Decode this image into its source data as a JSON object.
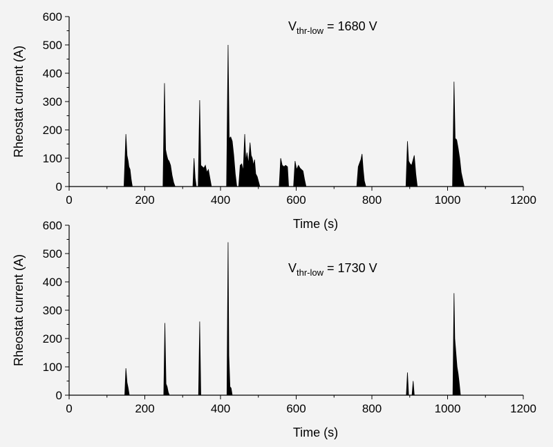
{
  "chart_data": [
    {
      "type": "area",
      "xlabel": "Time (s)",
      "ylabel": "Rheostat current (A)",
      "xlim": [
        0,
        1200
      ],
      "ylim": [
        0,
        600
      ],
      "xticks": [
        0,
        200,
        400,
        600,
        800,
        1000,
        1200
      ],
      "yticks": [
        0,
        100,
        200,
        300,
        400,
        500,
        600
      ],
      "annotation": {
        "main": "V",
        "sub": "thr-low",
        "rest": " = 1680 V"
      },
      "series": [
        {
          "color": "#000000",
          "points": [
            [
              145,
              0
            ],
            [
              150,
              185
            ],
            [
              153,
              110
            ],
            [
              156,
              90
            ],
            [
              158,
              70
            ],
            [
              161,
              60
            ],
            [
              164,
              25
            ],
            [
              167,
              0
            ],
            [
              248,
              0
            ],
            [
              252,
              365
            ],
            [
              255,
              130
            ],
            [
              258,
              110
            ],
            [
              261,
              95
            ],
            [
              264,
              90
            ],
            [
              268,
              75
            ],
            [
              272,
              40
            ],
            [
              276,
              15
            ],
            [
              280,
              0
            ],
            [
              327,
              0
            ],
            [
              330,
              100
            ],
            [
              333,
              30
            ],
            [
              336,
              0
            ],
            [
              341,
              0
            ],
            [
              345,
              305
            ],
            [
              348,
              75
            ],
            [
              352,
              70
            ],
            [
              356,
              65
            ],
            [
              360,
              75
            ],
            [
              364,
              50
            ],
            [
              368,
              60
            ],
            [
              372,
              30
            ],
            [
              376,
              0
            ],
            [
              416,
              0
            ],
            [
              420,
              500
            ],
            [
              423,
              170
            ],
            [
              427,
              175
            ],
            [
              431,
              160
            ],
            [
              435,
              110
            ],
            [
              439,
              45
            ],
            [
              443,
              0
            ],
            [
              448,
              0
            ],
            [
              452,
              75
            ],
            [
              456,
              80
            ],
            [
              460,
              55
            ],
            [
              464,
              185
            ],
            [
              467,
              90
            ],
            [
              470,
              120
            ],
            [
              474,
              80
            ],
            [
              478,
              155
            ],
            [
              481,
              110
            ],
            [
              484,
              100
            ],
            [
              487,
              75
            ],
            [
              490,
              95
            ],
            [
              493,
              45
            ],
            [
              497,
              35
            ],
            [
              500,
              20
            ],
            [
              504,
              0
            ],
            [
              555,
              0
            ],
            [
              559,
              100
            ],
            [
              563,
              75
            ],
            [
              568,
              70
            ],
            [
              572,
              75
            ],
            [
              577,
              70
            ],
            [
              580,
              0
            ],
            [
              593,
              0
            ],
            [
              597,
              90
            ],
            [
              601,
              60
            ],
            [
              606,
              75
            ],
            [
              610,
              65
            ],
            [
              614,
              60
            ],
            [
              618,
              55
            ],
            [
              622,
              25
            ],
            [
              626,
              0
            ],
            [
              760,
              0
            ],
            [
              764,
              70
            ],
            [
              768,
              85
            ],
            [
              771,
              95
            ],
            [
              774,
              115
            ],
            [
              777,
              60
            ],
            [
              780,
              20
            ],
            [
              784,
              0
            ],
            [
              890,
              0
            ],
            [
              894,
              160
            ],
            [
              897,
              90
            ],
            [
              901,
              80
            ],
            [
              905,
              75
            ],
            [
              909,
              95
            ],
            [
              912,
              110
            ],
            [
              916,
              45
            ],
            [
              920,
              0
            ],
            [
              1013,
              0
            ],
            [
              1017,
              370
            ],
            [
              1020,
              170
            ],
            [
              1024,
              165
            ],
            [
              1028,
              135
            ],
            [
              1032,
              100
            ],
            [
              1036,
              50
            ],
            [
              1040,
              25
            ],
            [
              1044,
              0
            ]
          ]
        }
      ]
    },
    {
      "type": "area",
      "xlabel": "Time (s)",
      "ylabel": "Rheostat current (A)",
      "xlim": [
        0,
        1200
      ],
      "ylim": [
        0,
        600
      ],
      "xticks": [
        0,
        200,
        400,
        600,
        800,
        1000,
        1200
      ],
      "yticks": [
        0,
        100,
        200,
        300,
        400,
        500,
        600
      ],
      "annotation": {
        "main": "V",
        "sub": "thr-low",
        "rest": " = 1730 V"
      },
      "series": [
        {
          "color": "#000000",
          "points": [
            [
              147,
              0
            ],
            [
              150,
              95
            ],
            [
              153,
              45
            ],
            [
              156,
              25
            ],
            [
              159,
              0
            ],
            [
              250,
              0
            ],
            [
              253,
              255
            ],
            [
              256,
              40
            ],
            [
              259,
              30
            ],
            [
              262,
              10
            ],
            [
              265,
              0
            ],
            [
              342,
              0
            ],
            [
              345,
              260
            ],
            [
              348,
              0
            ],
            [
              417,
              0
            ],
            [
              420,
              540
            ],
            [
              422,
              140
            ],
            [
              425,
              30
            ],
            [
              428,
              25
            ],
            [
              431,
              0
            ],
            [
              891,
              0
            ],
            [
              894,
              80
            ],
            [
              897,
              0
            ],
            [
              906,
              0
            ],
            [
              909,
              50
            ],
            [
              912,
              0
            ],
            [
              1014,
              0
            ],
            [
              1017,
              360
            ],
            [
              1019,
              200
            ],
            [
              1022,
              150
            ],
            [
              1025,
              100
            ],
            [
              1028,
              75
            ],
            [
              1031,
              40
            ],
            [
              1034,
              0
            ]
          ]
        }
      ]
    }
  ]
}
